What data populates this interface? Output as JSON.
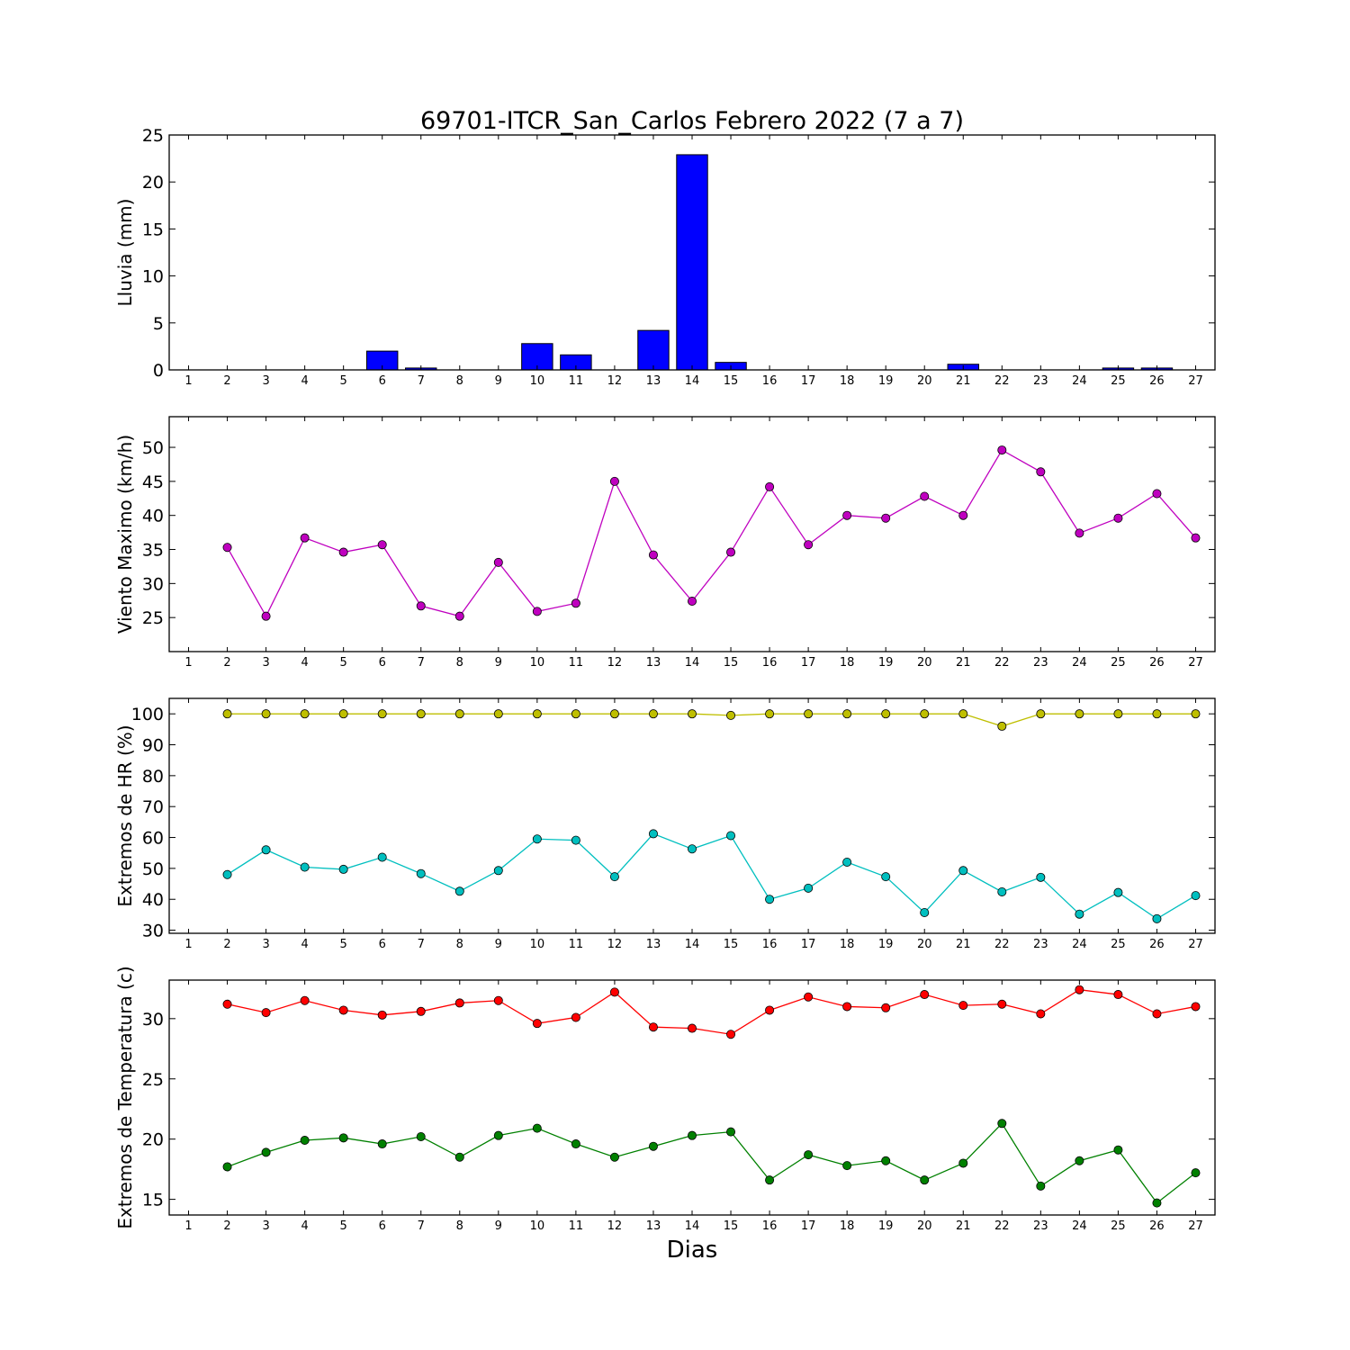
{
  "title": "69701-ITCR_San_Carlos Febrero 2022  (7 a 7)",
  "xlabel": "Dias",
  "chart_data": [
    {
      "type": "bar",
      "ylabel": "Lluvia (mm)",
      "xlim": [
        0.5,
        27.5
      ],
      "ylim": [
        0,
        25
      ],
      "xticks": [
        1,
        2,
        3,
        4,
        5,
        6,
        7,
        8,
        9,
        10,
        11,
        12,
        13,
        14,
        15,
        16,
        17,
        18,
        19,
        20,
        21,
        22,
        23,
        24,
        25,
        26,
        27
      ],
      "yticks": [
        0,
        5,
        10,
        15,
        20,
        25
      ],
      "x": [
        1,
        2,
        3,
        4,
        5,
        6,
        7,
        8,
        9,
        10,
        11,
        12,
        13,
        14,
        15,
        16,
        17,
        18,
        19,
        20,
        21,
        22,
        23,
        24,
        25,
        26,
        27
      ],
      "series": [
        {
          "color": "#0000ff",
          "values": [
            0,
            0,
            0,
            0,
            0,
            2.0,
            0.2,
            0,
            0,
            2.8,
            1.6,
            0,
            4.2,
            22.9,
            0.8,
            0,
            0,
            0,
            0,
            0,
            0.6,
            0,
            0,
            0,
            0.2,
            0.2,
            0
          ]
        }
      ]
    },
    {
      "type": "line",
      "ylabel": "Viento Maximo (km/h)",
      "xlim": [
        0.5,
        27.5
      ],
      "ylim": [
        20,
        54.5
      ],
      "xticks": [
        1,
        2,
        3,
        4,
        5,
        6,
        7,
        8,
        9,
        10,
        11,
        12,
        13,
        14,
        15,
        16,
        17,
        18,
        19,
        20,
        21,
        22,
        23,
        24,
        25,
        26,
        27
      ],
      "yticks": [
        25,
        30,
        35,
        40,
        45,
        50
      ],
      "x": [
        2,
        3,
        4,
        5,
        6,
        7,
        8,
        9,
        10,
        11,
        12,
        13,
        14,
        15,
        16,
        17,
        18,
        19,
        20,
        21,
        22,
        23,
        24,
        25,
        26,
        27
      ],
      "series": [
        {
          "color": "#bf00bf",
          "values": [
            35.3,
            25.2,
            36.7,
            34.6,
            35.7,
            26.7,
            25.2,
            33.1,
            25.9,
            27.1,
            45.0,
            34.2,
            27.4,
            34.6,
            44.2,
            35.7,
            40.0,
            39.6,
            42.8,
            40.0,
            49.6,
            46.4,
            37.4,
            39.6,
            43.2,
            36.7
          ]
        }
      ]
    },
    {
      "type": "line",
      "ylabel": "Extremos de HR (%)",
      "xlim": [
        0.5,
        27.5
      ],
      "ylim": [
        29,
        105
      ],
      "xticks": [
        1,
        2,
        3,
        4,
        5,
        6,
        7,
        8,
        9,
        10,
        11,
        12,
        13,
        14,
        15,
        16,
        17,
        18,
        19,
        20,
        21,
        22,
        23,
        24,
        25,
        26,
        27
      ],
      "yticks": [
        30,
        40,
        50,
        60,
        70,
        80,
        90,
        100
      ],
      "x": [
        2,
        3,
        4,
        5,
        6,
        7,
        8,
        9,
        10,
        11,
        12,
        13,
        14,
        15,
        16,
        17,
        18,
        19,
        20,
        21,
        22,
        23,
        24,
        25,
        26,
        27
      ],
      "series": [
        {
          "color": "#bfbf00",
          "values": [
            100,
            100,
            100,
            100,
            100,
            100,
            100,
            100,
            100,
            100,
            100,
            100,
            100,
            99.5,
            100,
            100,
            100,
            100,
            100,
            100,
            96,
            100,
            100,
            100,
            100,
            100
          ]
        },
        {
          "color": "#00bfbf",
          "values": [
            48,
            56,
            50.4,
            49.7,
            53.6,
            48.3,
            42.6,
            49.3,
            59.5,
            59.1,
            47.3,
            61.2,
            56.3,
            60.6,
            40,
            43.6,
            52,
            47.3,
            35.7,
            49.3,
            42.4,
            47.1,
            35.2,
            42.2,
            33.7,
            41.2
          ]
        }
      ]
    },
    {
      "type": "line",
      "ylabel": "Extremos de Temperatura (c)",
      "xlim": [
        0.5,
        27.5
      ],
      "ylim": [
        13.7,
        33.2
      ],
      "xticks": [
        1,
        2,
        3,
        4,
        5,
        6,
        7,
        8,
        9,
        10,
        11,
        12,
        13,
        14,
        15,
        16,
        17,
        18,
        19,
        20,
        21,
        22,
        23,
        24,
        25,
        26,
        27
      ],
      "yticks": [
        15,
        20,
        25,
        30
      ],
      "x": [
        2,
        3,
        4,
        5,
        6,
        7,
        8,
        9,
        10,
        11,
        12,
        13,
        14,
        15,
        16,
        17,
        18,
        19,
        20,
        21,
        22,
        23,
        24,
        25,
        26,
        27
      ],
      "series": [
        {
          "color": "#ff0000",
          "values": [
            31.2,
            30.5,
            31.5,
            30.7,
            30.3,
            30.6,
            31.3,
            31.5,
            29.6,
            30.1,
            32.2,
            29.3,
            29.2,
            28.7,
            30.7,
            31.8,
            31.0,
            30.9,
            32.0,
            31.1,
            31.2,
            30.4,
            32.4,
            32.0,
            30.4,
            31.0
          ]
        },
        {
          "color": "#008000",
          "values": [
            17.7,
            18.9,
            19.9,
            20.1,
            19.6,
            20.2,
            18.5,
            20.3,
            20.9,
            19.6,
            18.5,
            19.4,
            20.3,
            20.6,
            16.6,
            18.7,
            17.8,
            18.2,
            16.6,
            18.0,
            21.3,
            16.1,
            18.2,
            19.1,
            14.7,
            17.2
          ]
        }
      ]
    }
  ]
}
